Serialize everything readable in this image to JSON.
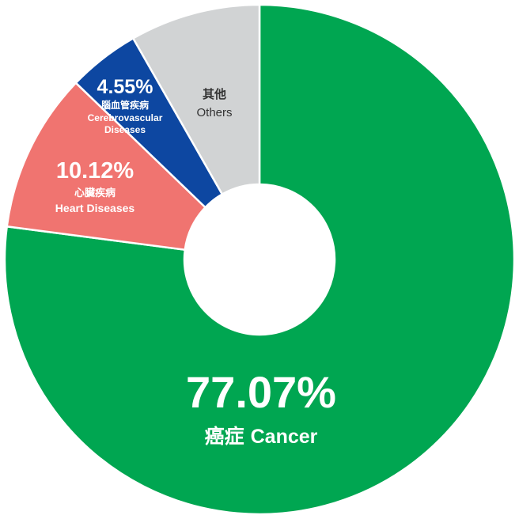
{
  "chart_data": {
    "type": "pie",
    "donut": true,
    "slices": [
      {
        "key": "cancer",
        "value": 77.07,
        "value_label": "77.07%",
        "label_zh": "癌症",
        "label_en": "Cancer",
        "color": "#00a651"
      },
      {
        "key": "heart",
        "value": 10.12,
        "value_label": "10.12%",
        "label_zh": "心臟疾病",
        "label_en": "Heart Diseases",
        "color": "#f07470"
      },
      {
        "key": "cerebro",
        "value": 4.55,
        "value_label": "4.55%",
        "label_zh": "腦血管疾病",
        "label_en": "Cerebrovascular Diseases",
        "label_en_lines": [
          "Cerebrovascular",
          "Diseases"
        ],
        "color": "#0d47a1"
      },
      {
        "key": "others",
        "value": 8.26,
        "value_label": "",
        "label_zh": "其他",
        "label_en": "Others",
        "color": "#d1d3d4"
      }
    ]
  }
}
